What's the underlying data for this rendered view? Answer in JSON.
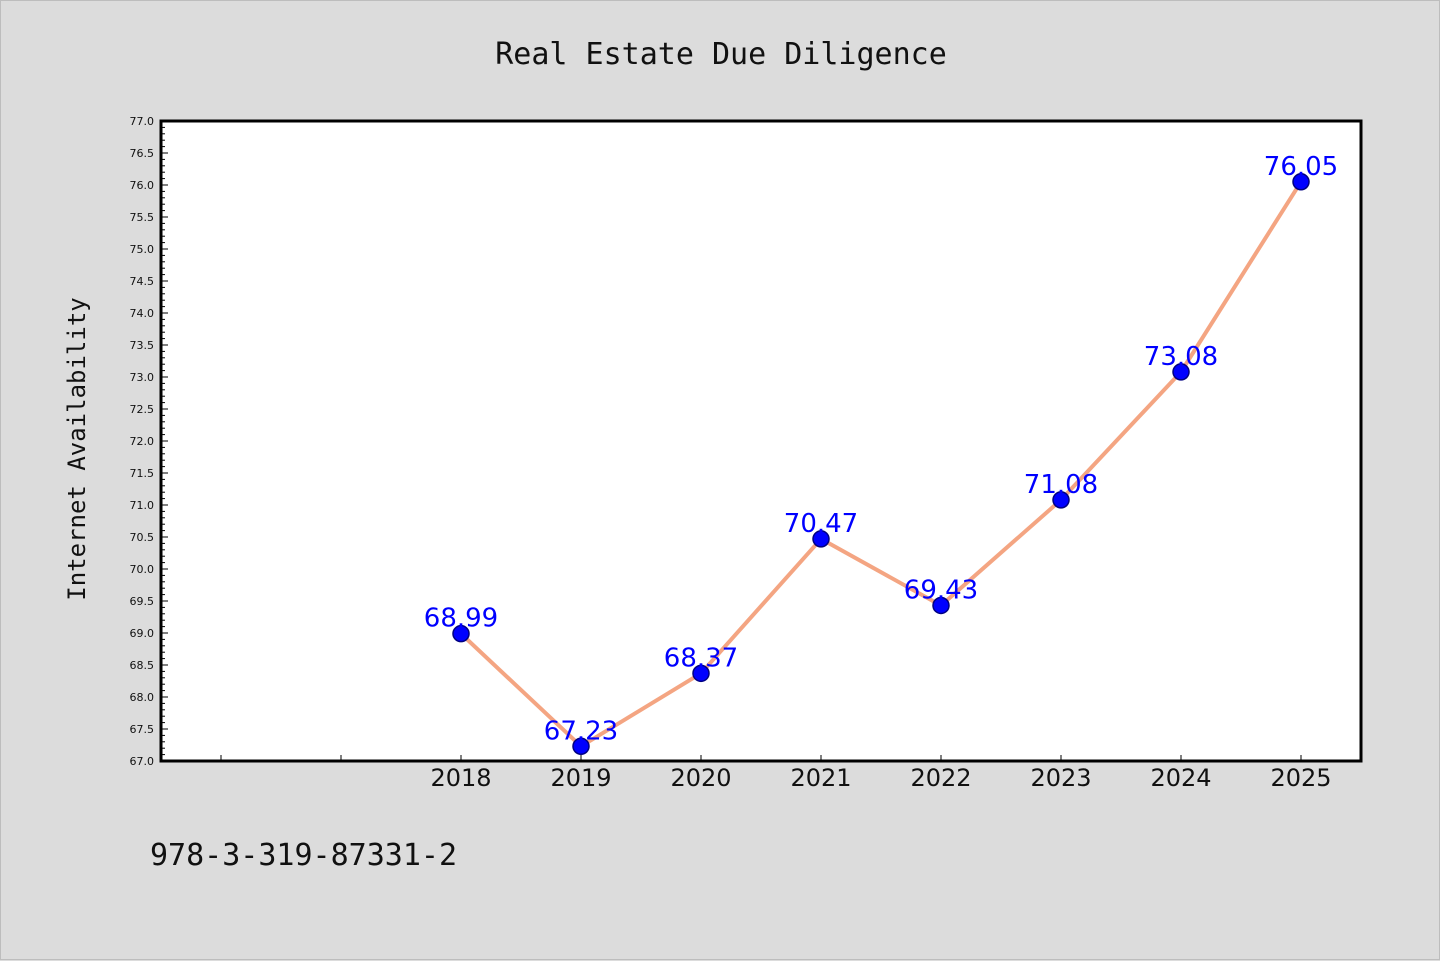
{
  "chart_data": {
    "type": "line",
    "title": "Real Estate Due Diligence",
    "xlabel": "",
    "ylabel": "Internet Availability",
    "categories": [
      "",
      "",
      "2018",
      "2019",
      "2020",
      "2021",
      "2022",
      "2023",
      "2024",
      "2025"
    ],
    "series": [
      {
        "values": [
          null,
          null,
          68.99,
          67.23,
          68.37,
          70.47,
          69.43,
          71.08,
          73.08,
          76.05
        ],
        "data_labels": [
          "",
          "",
          "68.99",
          "67.23",
          "68.37",
          "70.47",
          "69.43",
          "71.08",
          "73.08",
          "76.05"
        ]
      }
    ],
    "ylim": [
      67.0,
      77.0
    ],
    "y_ticks": [
      "67.0",
      "67.5",
      "68.0",
      "68.5",
      "69.0",
      "69.5",
      "70.0",
      "70.5",
      "71.0",
      "71.5",
      "72.0",
      "72.5",
      "73.0",
      "73.5",
      "74.0",
      "74.5",
      "75.0",
      "75.5",
      "76.0",
      "76.5",
      "77.0"
    ],
    "y_tick_values": [
      67.0,
      67.5,
      68.0,
      68.5,
      69.0,
      69.5,
      70.0,
      70.5,
      71.0,
      71.5,
      72.0,
      72.5,
      73.0,
      73.5,
      74.0,
      74.5,
      75.0,
      75.5,
      76.0,
      76.5,
      77.0
    ],
    "grid": false,
    "legend": "none",
    "colors": {
      "line": "#f4a582",
      "marker": "#0000ff",
      "marker_edge": "#000080",
      "data_label": "#0000ff",
      "plot_background": "#ffffff",
      "figure_background": "#dcdcdc"
    }
  },
  "footer": {
    "text": "978-3-319-87331-2"
  }
}
